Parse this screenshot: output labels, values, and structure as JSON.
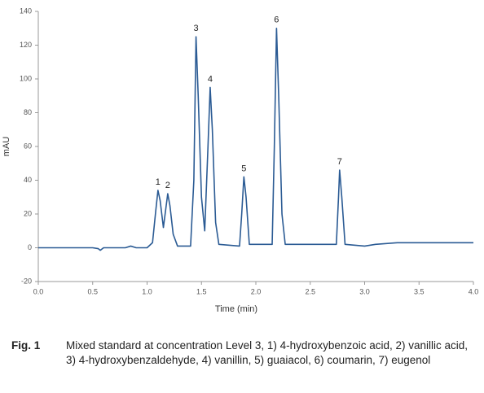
{
  "chart_data": {
    "type": "line",
    "xlabel": "Time (min)",
    "ylabel": "mAU",
    "x": [
      0,
      0.5,
      0.55,
      0.57,
      0.6,
      0.8,
      0.85,
      0.9,
      1.0,
      1.05,
      1.08,
      1.1,
      1.12,
      1.15,
      1.17,
      1.19,
      1.21,
      1.24,
      1.28,
      1.4,
      1.43,
      1.45,
      1.47,
      1.5,
      1.53,
      1.56,
      1.58,
      1.6,
      1.63,
      1.66,
      1.85,
      1.87,
      1.89,
      1.91,
      1.94,
      2.15,
      2.17,
      2.19,
      2.21,
      2.24,
      2.27,
      2.74,
      2.76,
      2.77,
      2.79,
      2.82,
      3.0,
      3.1,
      3.3,
      3.5,
      4.0
    ],
    "values": [
      0,
      0,
      -0.5,
      -1.5,
      0,
      0,
      1,
      0,
      0,
      3,
      22,
      34,
      28,
      12,
      22,
      32,
      25,
      8,
      1,
      1,
      40,
      125,
      90,
      30,
      10,
      60,
      95,
      70,
      15,
      2,
      1,
      20,
      42,
      30,
      2,
      2,
      60,
      130,
      90,
      20,
      2,
      2,
      30,
      46,
      30,
      2,
      1,
      2,
      3,
      3,
      3
    ],
    "color": "#2b5b94",
    "xlim": [
      0,
      4
    ],
    "ylim": [
      -20,
      140
    ],
    "xticks": [
      {
        "value": 0,
        "label": "0.0"
      },
      0.5,
      {
        "value": 1,
        "label": "1.0"
      },
      1.5,
      {
        "value": 2,
        "label": "2.0"
      },
      2.5,
      {
        "value": 3,
        "label": "3.0"
      },
      3.5,
      {
        "value": 4,
        "label": "4.0"
      }
    ],
    "yticks": [
      -20,
      0,
      20,
      40,
      60,
      80,
      100,
      120,
      140
    ],
    "annotations": [
      {
        "text": "1",
        "x": 1.1,
        "y": 34
      },
      {
        "text": "2",
        "x": 1.19,
        "y": 32
      },
      {
        "text": "3",
        "x": 1.45,
        "y": 125
      },
      {
        "text": "4",
        "x": 1.58,
        "y": 95
      },
      {
        "text": "5",
        "x": 1.89,
        "y": 42
      },
      {
        "text": "6",
        "x": 2.19,
        "y": 130
      },
      {
        "text": "7",
        "x": 2.77,
        "y": 46
      }
    ]
  },
  "caption": {
    "label": "Fig. 1",
    "text": "Mixed standard at concentration Level 3, 1) 4-hydroxybenzoic acid, 2) vanillic acid, 3) 4-hydroxybenzaldehyde, 4) vanillin, 5) guaiacol, 6) coumarin, 7) eugenol"
  }
}
